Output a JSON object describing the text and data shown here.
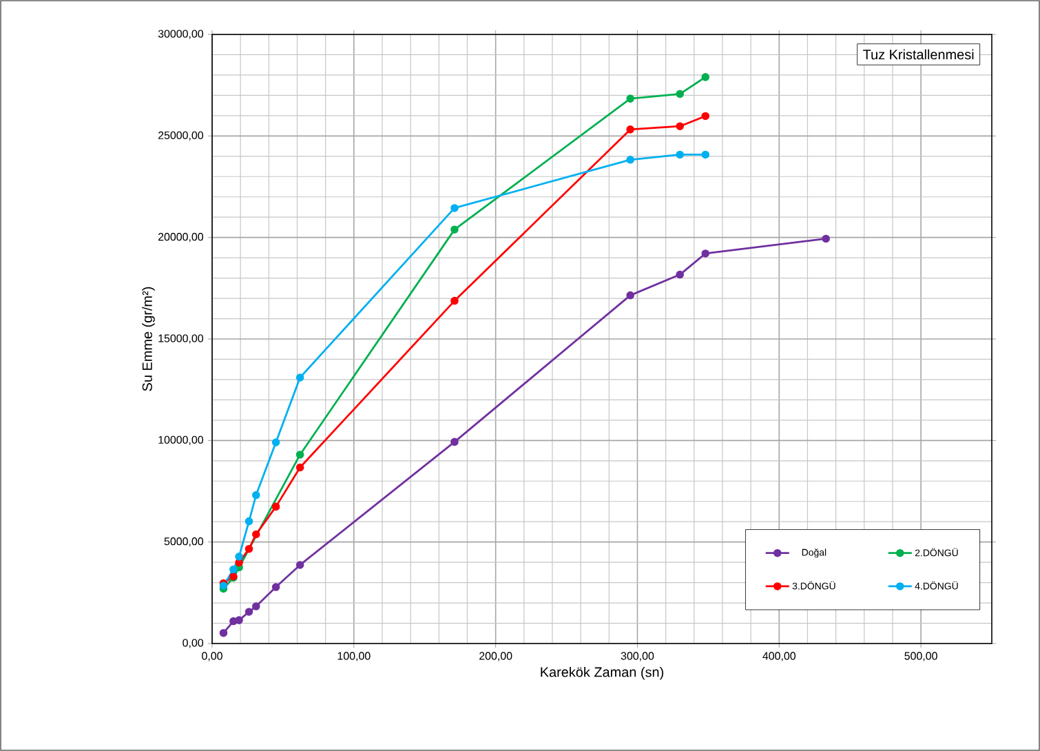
{
  "chart_data": {
    "type": "line",
    "title": "Tuz Kristallenmesi",
    "xlabel": "Karekök  Zaman (sn)",
    "ylabel": "Su  Emme (gr/m²)",
    "series": [
      {
        "name": "Doğal",
        "color": "#7030a0",
        "x": [
          8,
          15,
          19,
          26,
          31,
          45,
          62,
          171,
          295,
          330,
          348,
          433
        ],
        "values": [
          520,
          1100,
          1150,
          1560,
          1830,
          2780,
          3870,
          9930,
          17150,
          18170,
          19210,
          19940
        ]
      },
      {
        "name": "2.DÖNGÜ",
        "color": "#00b050",
        "x": [
          8,
          15,
          19,
          62,
          171,
          295,
          330,
          348
        ],
        "values": [
          2700,
          3240,
          3750,
          9300,
          20390,
          26840,
          27070,
          27900
        ]
      },
      {
        "name": "3.DÖNGÜ",
        "color": "#ff0000",
        "x": [
          8,
          15,
          19,
          26,
          31,
          45,
          62,
          171,
          295,
          330,
          348
        ],
        "values": [
          2970,
          3300,
          3990,
          4660,
          5380,
          6740,
          8670,
          16880,
          25320,
          25480,
          25980
        ]
      },
      {
        "name": "4.DÖNGÜ",
        "color": "#00b0f0",
        "x": [
          8,
          15,
          19,
          26,
          31,
          45,
          62,
          171,
          295,
          330,
          348
        ],
        "values": [
          2850,
          3650,
          4280,
          6020,
          7310,
          9910,
          13100,
          21450,
          23830,
          24080,
          24080
        ]
      }
    ],
    "xlim": [
      0,
      550
    ],
    "ylim": [
      0,
      30000
    ],
    "xticks": [
      {
        "value": 0,
        "label": "0,00"
      },
      {
        "value": 100,
        "label": "100,00"
      },
      {
        "value": 200,
        "label": "200,00"
      },
      {
        "value": 300,
        "label": "300,00"
      },
      {
        "value": 400,
        "label": "400,00"
      },
      {
        "value": 500,
        "label": "500,00"
      }
    ],
    "yticks": [
      {
        "value": 0,
        "label": "0,00"
      },
      {
        "value": 5000,
        "label": "5000,00"
      },
      {
        "value": 10000,
        "label": "10000,00"
      },
      {
        "value": 15000,
        "label": "15000,00"
      },
      {
        "value": 20000,
        "label": "20000,00"
      },
      {
        "value": 25000,
        "label": "25000,00"
      },
      {
        "value": 30000,
        "label": "30000,00"
      }
    ],
    "grid": true,
    "legend": "bottom right",
    "marker": "circle",
    "line_style": "solid"
  }
}
